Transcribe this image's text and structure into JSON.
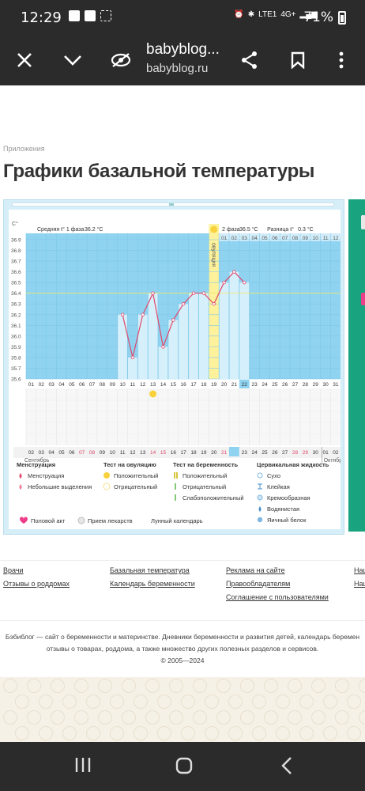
{
  "status": {
    "time": "12:29",
    "network": "4G+",
    "lte": "LTE1",
    "battery": "71%"
  },
  "browser": {
    "title": "babyblog...",
    "domain": "babyblog.ru"
  },
  "page": {
    "breadcrumb": "Приложения",
    "title": "Графики базальной температуры"
  },
  "chart_data": {
    "type": "line",
    "ylabel": "С°",
    "y_ticks": [
      "36.9",
      "36.8",
      "36.7",
      "36.6",
      "36.5",
      "36.4",
      "36.3",
      "36.2",
      "36.1",
      "36.0",
      "35.9",
      "35.8",
      "35.7",
      "35.6"
    ],
    "ylim": [
      35.6,
      36.9
    ],
    "phase1": "Средняя t° 1 фаза",
    "phase1_value": "36.2 °C",
    "phase2": "2 фаза",
    "phase2_value": "36.5 °C",
    "diff": "Разница t°",
    "diff_value": "0.3 °C",
    "ovulation": "овуляция",
    "ovulation_day": "19",
    "top_days": [
      "01",
      "02",
      "03",
      "04",
      "05",
      "06",
      "07",
      "08",
      "09",
      "10",
      "11",
      "12"
    ],
    "x_days": [
      "01",
      "02",
      "03",
      "04",
      "05",
      "06",
      "07",
      "08",
      "09",
      "10",
      "11",
      "12",
      "13",
      "14",
      "15",
      "16",
      "17",
      "18",
      "19",
      "20",
      "21",
      "22",
      "23",
      "24",
      "25",
      "26",
      "27",
      "28",
      "29",
      "30",
      "31"
    ],
    "highlight_day": "22",
    "x": [
      "10",
      "11",
      "12",
      "13",
      "14",
      "15",
      "16",
      "17",
      "18",
      "19",
      "20",
      "21",
      "22"
    ],
    "values": [
      36.2,
      35.8,
      36.2,
      36.4,
      35.9,
      36.15,
      36.3,
      36.4,
      36.4,
      36.3,
      36.5,
      36.6,
      36.5
    ],
    "coverline": 36.4,
    "bottom_days": [
      "02",
      "03",
      "04",
      "05",
      "06",
      "07",
      "08",
      "09",
      "10",
      "11",
      "12",
      "13",
      "14",
      "15",
      "16",
      "17",
      "18",
      "19",
      "20",
      "21",
      "22",
      "23",
      "24",
      "25",
      "26",
      "27",
      "28",
      "29",
      "30",
      "01",
      "02"
    ],
    "bottom_red": [
      "07",
      "08",
      "14",
      "15",
      "21",
      "22",
      "28",
      "29"
    ],
    "bottom_highlight": "23",
    "month_left": "Сентябрь",
    "month_right": "Октябрь",
    "ovulation_test_day": "13"
  },
  "legend": {
    "menstruation_head": "Менструация",
    "menstruation": "Менструация",
    "spotting": "Небольшие выделения",
    "ovulation_head": "Тест на овуляцию",
    "ov_positive": "Положительный",
    "ov_negative": "Отрицательный",
    "pregnancy_head": "Тест на беременность",
    "pr_positive": "Положительный",
    "pr_negative": "Отрицательный",
    "pr_weak": "Слабоположительный",
    "cervical_head": "Цервикальная жидкость",
    "dry": "Сухо",
    "sticky": "Клейкая",
    "creamy": "Кремообразная",
    "watery": "Водянистая",
    "eggwhite": "Яичный белок",
    "intercourse": "Половой акт",
    "medication": "Прием лекарств",
    "lunar": "Лунный календарь"
  },
  "footer": {
    "col1": [
      "Врачи",
      "Отзывы о роддомах"
    ],
    "col2": [
      "Базальная температура",
      "Календарь беременности"
    ],
    "col3": [
      "Реклама на сайте",
      "Правообладателям",
      "Соглашение с пользователями"
    ],
    "col4": [
      "Нац",
      "Нац"
    ],
    "line1": "Бэбиблог — сайт о беременности и материнстве. Дневники беременности и развития детей, календарь беремен",
    "line2": "отзывы о товарах, роддома, а также множество других полезных разделов и сервисов.",
    "line3": "© 2005—2024"
  },
  "colors": {
    "chart_blue": "#8fd3f1",
    "grid": "#7fc7e8",
    "bar": "#d6f0fb",
    "line": "#e0486a",
    "ovulation": "#fdf29b"
  }
}
